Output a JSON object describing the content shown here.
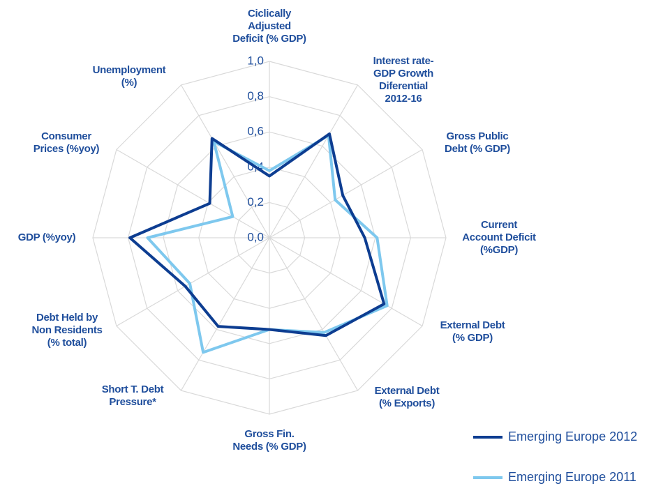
{
  "chart_data": {
    "type": "radar",
    "categories": [
      "Ciclically\nAdjusted\nDeficit (% GDP)",
      "Interest rate-\nGDP Growth\nDiferential\n2012-16",
      "Gross Public\nDebt (% GDP)",
      "Current\nAccount Deficit\n(%GDP)",
      "External Debt\n(% GDP)",
      "External Debt\n(% Exports)",
      "Gross Fin.\nNeeds (% GDP)",
      "Short T. Debt\nPressure*",
      "Debt Held by\nNon Residents\n(% total)",
      "GDP (%yoy)",
      "Consumer\nPrices (%yoy)",
      "Unemployment\n(%)"
    ],
    "series": [
      {
        "name": "Emerging Europe 2012",
        "color": "#0d3d91",
        "values": [
          0.35,
          0.68,
          0.48,
          0.54,
          0.75,
          0.64,
          0.52,
          0.58,
          0.55,
          0.79,
          0.39,
          0.65
        ]
      },
      {
        "name": "Emerging Europe 2011",
        "color": "#7ec8ee",
        "values": [
          0.38,
          0.67,
          0.43,
          0.61,
          0.77,
          0.62,
          0.52,
          0.75,
          0.52,
          0.69,
          0.24,
          0.63
        ]
      }
    ],
    "ylim": [
      0,
      1
    ],
    "yticks": [
      {
        "value": 0,
        "label": "0,0"
      },
      {
        "value": 0.2,
        "label": "0,2"
      },
      {
        "value": 0.4,
        "label": "0,4"
      },
      {
        "value": 0.6,
        "label": "0,6"
      },
      {
        "value": 0.8,
        "label": "0,8"
      },
      {
        "value": 1,
        "label": "1,0"
      }
    ],
    "grid": true
  }
}
